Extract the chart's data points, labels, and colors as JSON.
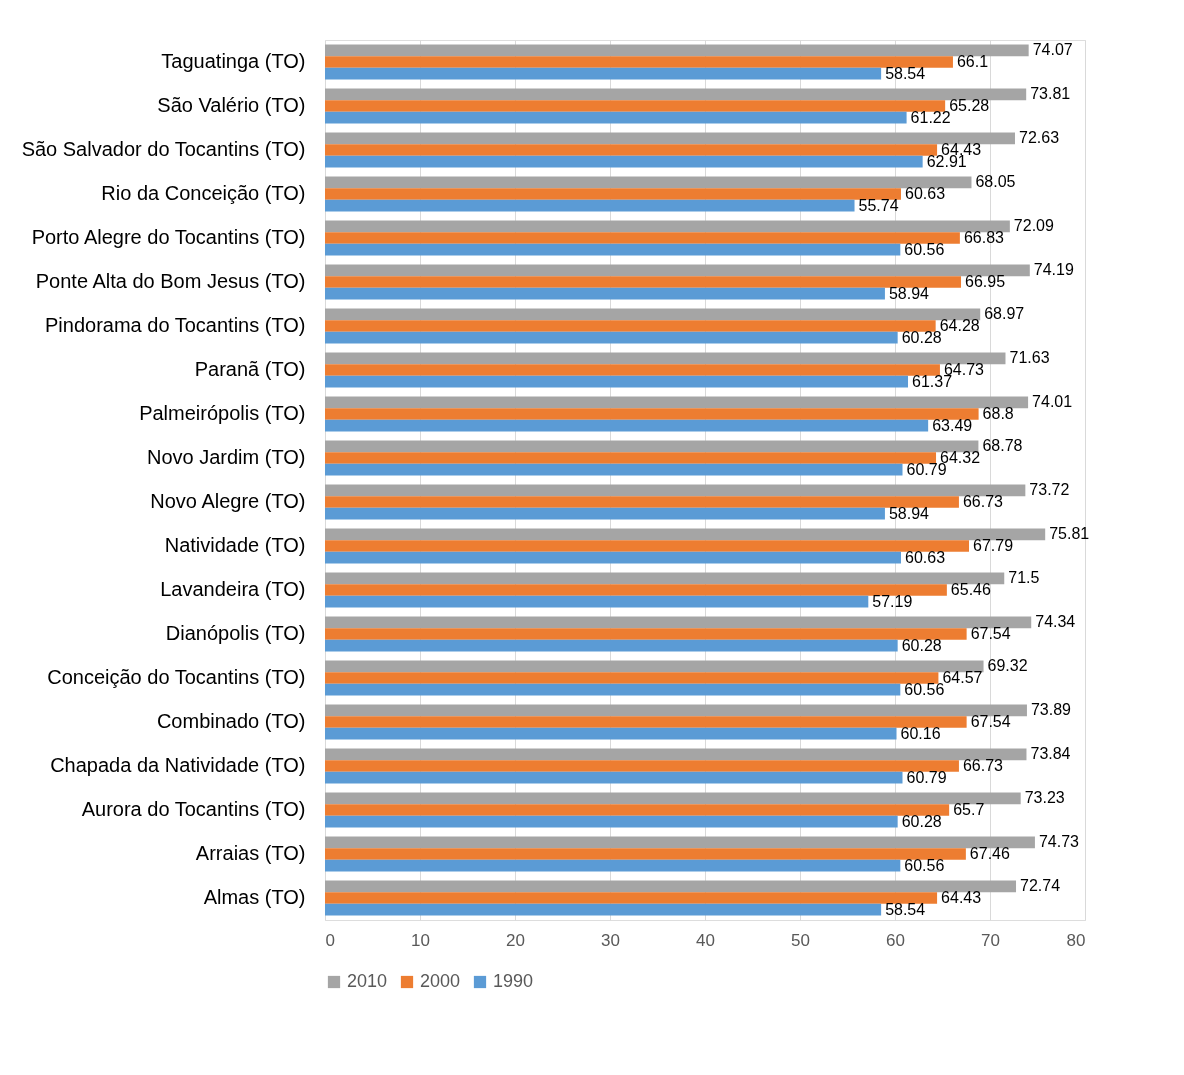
{
  "chart_data": {
    "type": "bar",
    "orientation": "horizontal",
    "categories": [
      "Taguatinga (TO)",
      "São Valério (TO)",
      "São Salvador do Tocantins (TO)",
      "Rio da Conceição (TO)",
      "Porto Alegre do Tocantins (TO)",
      "Ponte Alta do Bom Jesus (TO)",
      "Pindorama do Tocantins (TO)",
      "Paranã (TO)",
      "Palmeirópolis (TO)",
      "Novo Jardim (TO)",
      "Novo Alegre (TO)",
      "Natividade (TO)",
      "Lavandeira (TO)",
      "Dianópolis (TO)",
      "Conceição do Tocantins (TO)",
      "Combinado (TO)",
      "Chapada da Natividade (TO)",
      "Aurora do Tocantins (TO)",
      "Arraias (TO)",
      "Almas (TO)"
    ],
    "series": [
      {
        "name": "2010",
        "color": "#a5a5a5",
        "values": [
          74.07,
          73.81,
          72.63,
          68.05,
          72.09,
          74.19,
          68.97,
          71.63,
          74.01,
          68.78,
          73.72,
          75.81,
          71.5,
          74.34,
          69.32,
          73.89,
          73.84,
          73.23,
          74.73,
          72.74
        ]
      },
      {
        "name": "2000",
        "color": "#ed7d31",
        "values": [
          66.1,
          65.28,
          64.43,
          60.63,
          66.83,
          66.95,
          64.28,
          64.73,
          68.8,
          64.32,
          66.73,
          67.79,
          65.46,
          67.54,
          64.57,
          67.54,
          66.73,
          65.7,
          67.46,
          64.43
        ]
      },
      {
        "name": "1990",
        "color": "#5b9bd5",
        "values": [
          58.54,
          61.22,
          62.91,
          55.74,
          60.56,
          58.94,
          60.28,
          61.37,
          63.49,
          60.79,
          58.94,
          60.63,
          57.19,
          60.28,
          60.56,
          60.16,
          60.79,
          60.28,
          60.56,
          58.54
        ]
      }
    ],
    "xlim": [
      0,
      80
    ],
    "xticks": [
      0,
      10,
      20,
      30,
      40,
      50,
      60,
      70,
      80
    ],
    "grid": "x",
    "legend": "bottom",
    "data_labels": true
  }
}
